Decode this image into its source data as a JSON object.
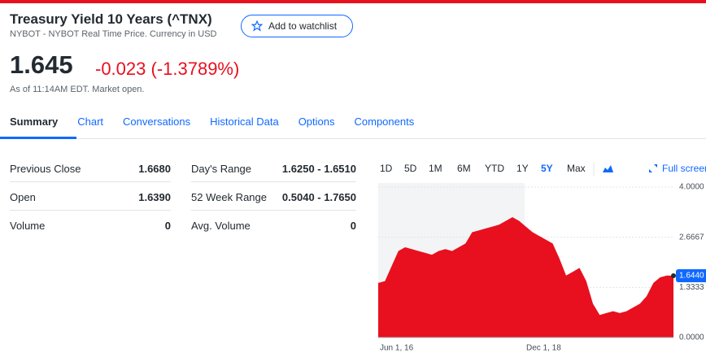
{
  "header": {
    "title": "Treasury Yield 10 Years (^TNX)",
    "subtitle": "NYBOT - NYBOT Real Time Price. Currency in USD",
    "watchlist_button": "Add to watchlist"
  },
  "quote": {
    "price": "1.645",
    "change": "-0.023 (-1.3789%)",
    "as_of": "As of 11:14AM EDT. Market open."
  },
  "tabs": [
    "Summary",
    "Chart",
    "Conversations",
    "Historical Data",
    "Options",
    "Components"
  ],
  "stats": {
    "rows": [
      [
        "Previous Close",
        "1.6680",
        "Day's Range",
        "1.6250 - 1.6510"
      ],
      [
        "Open",
        "1.6390",
        "52 Week Range",
        "0.5040 - 1.7650"
      ],
      [
        "Volume",
        "0",
        "Avg. Volume",
        "0"
      ]
    ]
  },
  "chart": {
    "type": "area",
    "ranges": [
      "1D",
      "5D",
      "1M",
      "6M",
      "YTD",
      "1Y",
      "5Y",
      "Max"
    ],
    "active_range": 6,
    "full_screen": "Full screen",
    "x_labels": [
      "Jun 1, 16",
      "Dec 1, 18"
    ],
    "color": "#e8101e",
    "ylim": [
      0,
      4
    ],
    "yticks": [
      {
        "value": 4,
        "label": "4.0000"
      },
      {
        "value": 2.6667,
        "label": "2.6667"
      },
      {
        "value": 1.3333,
        "label": "1.3333"
      },
      {
        "value": 0,
        "label": "0.0000"
      }
    ],
    "values": [
      1.45,
      1.5,
      1.9,
      2.3,
      2.4,
      2.35,
      2.3,
      2.25,
      2.2,
      2.3,
      2.35,
      2.3,
      2.4,
      2.5,
      2.8,
      2.85,
      2.9,
      2.95,
      3.0,
      3.1,
      3.2,
      3.1,
      2.95,
      2.8,
      2.7,
      2.6,
      2.5,
      2.1,
      1.65,
      1.75,
      1.85,
      1.5,
      0.9,
      0.6,
      0.65,
      0.7,
      0.65,
      0.7,
      0.8,
      0.9,
      1.1,
      1.45,
      1.6,
      1.65,
      1.644
    ],
    "current": {
      "value": 1.644,
      "label": "1.6440"
    }
  }
}
